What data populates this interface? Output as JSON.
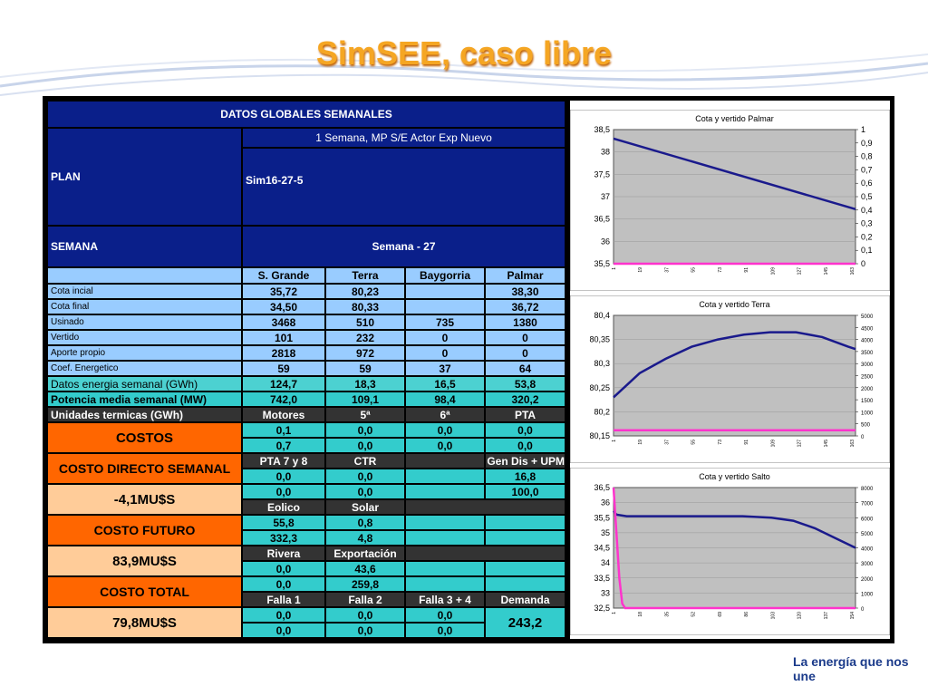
{
  "page": {
    "title": "SimSEE, caso libre",
    "logo_tagline": "La energía que nos une"
  },
  "table": {
    "header": "DATOS GLOBALES SEMANALES",
    "plan_label": "PLAN",
    "plan_desc": "1 Semana, MP S/E Actor Exp Nuevo",
    "plan_value": "Sim16-27-5",
    "semana_label": "SEMANA",
    "semana_value": "Semana - 27",
    "col_headers": [
      "S. Grande",
      "Terra",
      "Baygorria",
      "Palmar"
    ],
    "rows": [
      {
        "label": "Cota incial",
        "values": [
          "35,72",
          "80,23",
          "",
          "38,30"
        ]
      },
      {
        "label": "Cota final",
        "values": [
          "34,50",
          "80,33",
          "",
          "36,72"
        ]
      },
      {
        "label": "Usinado",
        "values": [
          "3468",
          "510",
          "735",
          "1380"
        ]
      },
      {
        "label": "Vertido",
        "values": [
          "101",
          "232",
          "0",
          "0"
        ]
      },
      {
        "label": "Aporte propio",
        "values": [
          "2818",
          "972",
          "0",
          "0"
        ]
      },
      {
        "label": "Coef. Energetico",
        "values": [
          "59",
          "59",
          "37",
          "64"
        ]
      }
    ],
    "energia": {
      "label": "Datos energia semanal  (GWh)",
      "values": [
        "124,7",
        "18,3",
        "16,5",
        "53,8"
      ]
    },
    "potencia": {
      "label": "Potencia media semanal (MW)",
      "values": [
        "742,0",
        "109,1",
        "98,4",
        "320,2"
      ]
    },
    "termicas": {
      "label": "Unidades termicas (GWh)",
      "headers": [
        "Motores",
        "5ª",
        "6ª",
        "PTA"
      ]
    },
    "termicas_vals": [
      [
        "0,1",
        "0,0",
        "0,0",
        "0,0"
      ],
      [
        "0,7",
        "0,0",
        "0,0",
        "0,0"
      ]
    ],
    "costos_label": "COSTOS",
    "costo_directo_label": "COSTO DIRECTO SEMANAL",
    "costo_directo_value": "-4,1MU$S",
    "costo_futuro_label": "COSTO FUTURO",
    "costo_futuro_value": "83,9MU$S",
    "costo_total_label": "COSTO TOTAL",
    "costo_total_value": "79,8MU$S",
    "pta_headers": [
      "PTA 7 y 8",
      "CTR",
      "Gen Dis + UPM"
    ],
    "pta_vals": [
      [
        "0,0",
        "0,0",
        "16,8"
      ],
      [
        "0,0",
        "0,0",
        "100,0"
      ]
    ],
    "eol_headers": [
      "Eolico",
      "Solar"
    ],
    "eol_vals": [
      [
        "55,8",
        "0,8"
      ],
      [
        "332,3",
        "4,8"
      ]
    ],
    "riv_headers": [
      "Rivera",
      "Exportación"
    ],
    "riv_vals": [
      [
        "0,0",
        "43,6"
      ],
      [
        "0,0",
        "259,8"
      ]
    ],
    "falla_headers": [
      "Falla 1",
      "Falla 2",
      "Falla 3 + 4",
      "Demanda"
    ],
    "falla_vals": [
      [
        "0,0",
        "0,0",
        "0,0"
      ],
      [
        "0,0",
        "0,0",
        "0,0"
      ]
    ],
    "demanda_value": "243,2"
  },
  "chart_data": [
    {
      "type": "line",
      "title": "Cota y vertido Palmar",
      "ylim": [
        35.5,
        38.5
      ],
      "y_ticks": [
        "38,5",
        "38",
        "37,5",
        "37",
        "36,5",
        "36",
        "35,5"
      ],
      "y2lim": [
        0,
        1
      ],
      "y2_ticks": [
        "1",
        "0,9",
        "0,8",
        "0,7",
        "0,6",
        "0,5",
        "0,4",
        "0,3",
        "0,2",
        "0,1",
        "0"
      ],
      "x_ticks": [
        "1",
        "19",
        "37",
        "55",
        "73",
        "91",
        "109",
        "127",
        "145",
        "163"
      ],
      "xlim": [
        1,
        168
      ],
      "series": [
        {
          "axis": "left",
          "color": "#1a1a8c",
          "x": [
            1,
            168
          ],
          "y": [
            38.3,
            36.72
          ]
        },
        {
          "axis": "right",
          "color": "#ff33cc",
          "x": [
            1,
            168
          ],
          "y": [
            0,
            0
          ]
        }
      ]
    },
    {
      "type": "line",
      "title": "Cota y vertido Terra",
      "ylim": [
        80.15,
        80.4
      ],
      "y_ticks": [
        "80,4",
        "80,35",
        "80,3",
        "80,25",
        "80,2",
        "80,15"
      ],
      "y2lim": [
        0,
        5000
      ],
      "y2_ticks": [
        "5000",
        "4500",
        "4000",
        "3500",
        "3000",
        "2500",
        "2000",
        "1500",
        "1000",
        "500",
        "0"
      ],
      "x_ticks": [
        "1",
        "19",
        "37",
        "55",
        "73",
        "91",
        "109",
        "127",
        "145",
        "163"
      ],
      "xlim": [
        1,
        168
      ],
      "series": [
        {
          "axis": "left",
          "color": "#1a1a8c",
          "x": [
            1,
            19,
            37,
            55,
            73,
            91,
            109,
            127,
            145,
            163,
            168
          ],
          "y": [
            80.23,
            80.28,
            80.31,
            80.335,
            80.35,
            80.36,
            80.365,
            80.365,
            80.355,
            80.335,
            80.33
          ]
        },
        {
          "axis": "right",
          "color": "#ff33cc",
          "x": [
            1,
            168
          ],
          "y": [
            232,
            232
          ]
        }
      ]
    },
    {
      "type": "line",
      "title": "Cota y vertido Salto",
      "ylim": [
        32.5,
        36.5
      ],
      "y_ticks": [
        "36,5",
        "36",
        "35,5",
        "35",
        "34,5",
        "34",
        "33,5",
        "33",
        "32,5"
      ],
      "y2lim": [
        0,
        8000
      ],
      "y2_ticks": [
        "8000",
        "7000",
        "6000",
        "5000",
        "4000",
        "3000",
        "2000",
        "1000",
        "0"
      ],
      "x_ticks": [
        "1",
        "18",
        "35",
        "52",
        "69",
        "86",
        "103",
        "120",
        "137",
        "154"
      ],
      "xlim": [
        1,
        168
      ],
      "series": [
        {
          "axis": "left",
          "color": "#1a1a8c",
          "x": [
            1,
            3,
            10,
            30,
            60,
            90,
            110,
            125,
            140,
            155,
            168
          ],
          "y": [
            35.72,
            35.6,
            35.55,
            35.55,
            35.55,
            35.55,
            35.5,
            35.4,
            35.15,
            34.8,
            34.5
          ]
        },
        {
          "axis": "right",
          "color": "#ff33cc",
          "x": [
            1,
            3,
            5,
            7,
            9,
            168
          ],
          "y": [
            8000,
            5000,
            2000,
            300,
            0,
            0
          ]
        }
      ]
    }
  ]
}
